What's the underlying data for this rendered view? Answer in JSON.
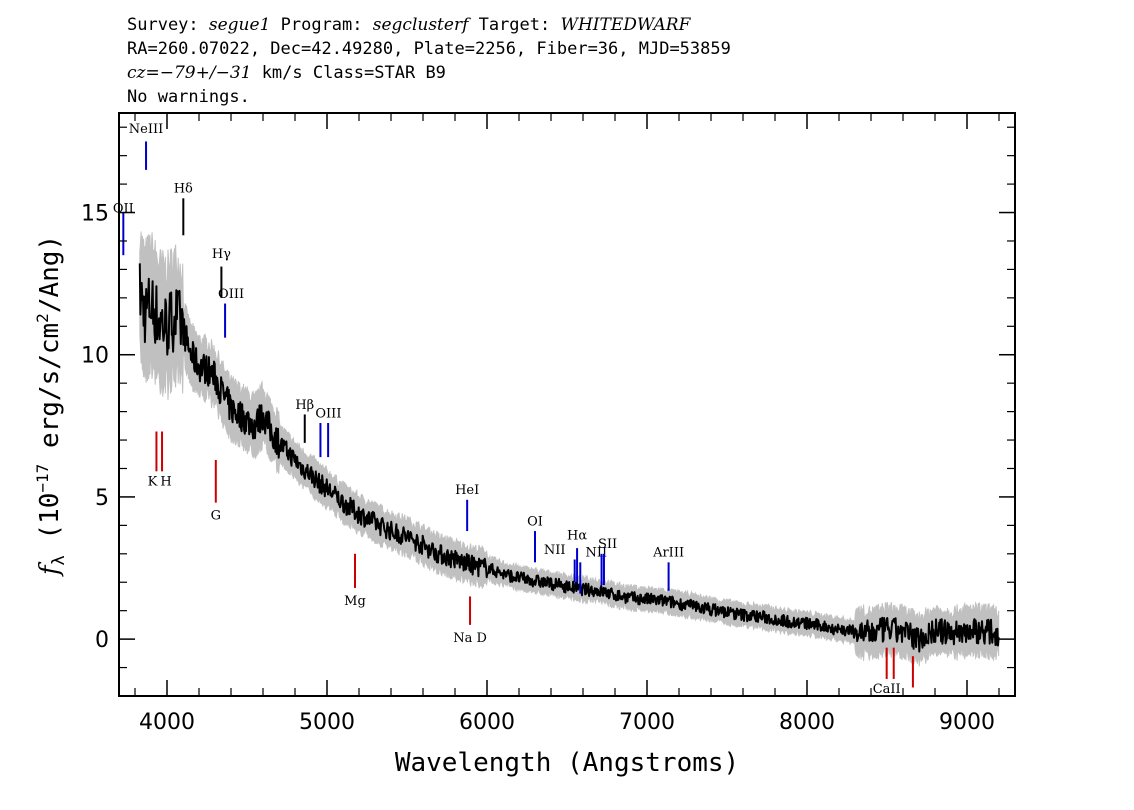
{
  "header": {
    "line1": {
      "survey_label": "Survey: ",
      "survey": "segue1",
      "program_label": " Program: ",
      "program": "segclusterf",
      "target_label": " Target: ",
      "target": "WHITEDWARF"
    },
    "line2": "RA=260.07022, Dec=42.49280, Plate=2256, Fiber=36, MJD=53859",
    "line3": {
      "cz": "cz=−79+/−31",
      "rest": " km/s Class=STAR B9"
    },
    "line4": "No warnings."
  },
  "chart_data": {
    "type": "line",
    "xlabel": "Wavelength (Angstroms)",
    "ylabel": "fλ (10⁻¹⁷ erg/s/cm²/Ang)",
    "xlim": [
      3700,
      9300
    ],
    "ylim": [
      -2,
      18.5
    ],
    "grid": false,
    "x_ticks": [
      4000,
      5000,
      6000,
      7000,
      8000,
      9000
    ],
    "y_ticks": [
      0,
      5,
      10,
      15
    ],
    "colors": {
      "flux": "#000000",
      "error": "#c0c0c0",
      "emission": "#0000cc",
      "absorption": "#cc0000"
    },
    "series": [
      {
        "name": "flux",
        "x": [
          3830,
          3860,
          3900,
          3950,
          4000,
          4050,
          4100,
          4150,
          4200,
          4250,
          4300,
          4350,
          4400,
          4450,
          4500,
          4550,
          4600,
          4650,
          4700,
          4750,
          4800,
          4850,
          4900,
          4950,
          5000,
          5100,
          5200,
          5300,
          5400,
          5500,
          5600,
          5700,
          5800,
          5900,
          6000,
          6100,
          6200,
          6300,
          6400,
          6500,
          6600,
          6700,
          6800,
          6900,
          7000,
          7100,
          7200,
          7300,
          7400,
          7500,
          7600,
          7700,
          7800,
          7900,
          8000,
          8100,
          8200,
          8300,
          8400,
          8500,
          8600,
          8700,
          8800,
          8900,
          9000,
          9100,
          9200
        ],
        "y": [
          12.2,
          11.5,
          11.8,
          11.2,
          11.0,
          11.4,
          10.9,
          10.0,
          9.6,
          9.5,
          9.2,
          8.6,
          8.1,
          7.9,
          7.7,
          7.5,
          7.9,
          7.3,
          6.9,
          6.6,
          6.3,
          6.0,
          5.8,
          5.5,
          5.3,
          4.8,
          4.4,
          4.1,
          3.8,
          3.6,
          3.3,
          3.0,
          2.8,
          2.6,
          2.5,
          2.3,
          2.15,
          2.05,
          1.95,
          1.85,
          1.75,
          1.7,
          1.55,
          1.45,
          1.4,
          1.35,
          1.25,
          1.15,
          1.05,
          0.95,
          0.85,
          0.8,
          0.7,
          0.6,
          0.55,
          0.45,
          0.35,
          0.25,
          0.2,
          0.35,
          0.25,
          0.0,
          0.3,
          0.2,
          0.3,
          0.3,
          0.2
        ]
      }
    ],
    "lines": [
      {
        "label": "OII",
        "wave": 3727,
        "y1": 13.5,
        "y2": 15.0,
        "color": "#0000cc",
        "label_y": 15.0,
        "side": "top",
        "dx": 0
      },
      {
        "label": "NeIII",
        "wave": 3869,
        "y1": 16.5,
        "y2": 17.5,
        "color": "#0000cc",
        "label_y": 17.8,
        "side": "top",
        "dx": 0
      },
      {
        "label": "Hδ",
        "wave": 4102,
        "y1": 14.2,
        "y2": 15.5,
        "color": "#000000",
        "label_y": 15.7,
        "side": "top",
        "dx": 0
      },
      {
        "label": "Hγ",
        "wave": 4340,
        "y1": 12.0,
        "y2": 13.1,
        "color": "#000000",
        "label_y": 13.4,
        "side": "top",
        "dx": 0
      },
      {
        "label": "OIII",
        "wave": 4363,
        "y1": 10.6,
        "y2": 11.8,
        "color": "#0000cc",
        "label_y": 12.0,
        "side": "top",
        "dx": 6
      },
      {
        "label": "Hβ",
        "wave": 4861,
        "y1": 6.9,
        "y2": 7.9,
        "color": "#000000",
        "label_y": 8.1,
        "side": "top",
        "dx": 0
      },
      {
        "label": "OIII",
        "wave": 4959,
        "y1": 6.4,
        "y2": 7.6,
        "color": "#0000cc",
        "label_y": 7.8,
        "side": "top",
        "dx": 8
      },
      {
        "label": "OIII",
        "wave": 5007,
        "y1": 6.4,
        "y2": 7.6,
        "color": "#0000cc",
        "label_y": null,
        "side": "top",
        "dx": 0
      },
      {
        "label": "HeI",
        "wave": 5876,
        "y1": 3.8,
        "y2": 4.9,
        "color": "#0000cc",
        "label_y": 5.1,
        "side": "top",
        "dx": 0
      },
      {
        "label": "OI",
        "wave": 6300,
        "y1": 2.7,
        "y2": 3.8,
        "color": "#0000cc",
        "label_y": 4.0,
        "side": "top",
        "dx": 0
      },
      {
        "label": "NII",
        "wave": 6548,
        "y1": 2.0,
        "y2": 2.8,
        "color": "#0000cc",
        "label_y": 3.0,
        "side": "top",
        "dx": -20
      },
      {
        "label": "Hα",
        "wave": 6563,
        "y1": 2.0,
        "y2": 3.2,
        "color": "#0000cc",
        "label_y": 3.5,
        "side": "top",
        "dx": 0
      },
      {
        "label": "NII",
        "wave": 6583,
        "y1": 1.6,
        "y2": 2.7,
        "color": "#0000cc",
        "label_y": 2.9,
        "side": "top",
        "dx": 16
      },
      {
        "label": "SII",
        "wave": 6716,
        "y1": 1.9,
        "y2": 3.0,
        "color": "#0000cc",
        "label_y": 3.2,
        "side": "top",
        "dx": 6
      },
      {
        "label": "SII",
        "wave": 6731,
        "y1": 1.9,
        "y2": 3.0,
        "color": "#0000cc",
        "label_y": null,
        "side": "top",
        "dx": 0
      },
      {
        "label": "ArIII",
        "wave": 7135,
        "y1": 1.7,
        "y2": 2.7,
        "color": "#0000cc",
        "label_y": 2.9,
        "side": "top",
        "dx": 0
      },
      {
        "label": "K",
        "wave": 3934,
        "y1": 5.9,
        "y2": 7.3,
        "color": "#cc0000",
        "label_y": 5.4,
        "side": "bottom",
        "dx": -4
      },
      {
        "label": "H",
        "wave": 3969,
        "y1": 5.9,
        "y2": 7.3,
        "color": "#cc0000",
        "label_y": 5.4,
        "side": "bottom",
        "dx": 4
      },
      {
        "label": "G",
        "wave": 4305,
        "y1": 4.8,
        "y2": 6.3,
        "color": "#cc0000",
        "label_y": 4.2,
        "side": "bottom",
        "dx": 0
      },
      {
        "label": "Mg",
        "wave": 5175,
        "y1": 1.8,
        "y2": 3.0,
        "color": "#cc0000",
        "label_y": 1.2,
        "side": "bottom",
        "dx": 0
      },
      {
        "label": "Na D",
        "wave": 5894,
        "y1": 0.5,
        "y2": 1.5,
        "color": "#cc0000",
        "label_y": -0.1,
        "side": "bottom",
        "dx": 0
      },
      {
        "label": "CaII",
        "wave": 8498,
        "y1": -1.4,
        "y2": -0.3,
        "color": "#cc0000",
        "label_y": -1.9,
        "side": "bottom",
        "dx": 0
      },
      {
        "label": "CaII",
        "wave": 8542,
        "y1": -1.4,
        "y2": -0.3,
        "color": "#cc0000",
        "label_y": null,
        "side": "bottom",
        "dx": 0
      },
      {
        "label": "CaII",
        "wave": 8662,
        "y1": -1.7,
        "y2": -0.6,
        "color": "#cc0000",
        "label_y": null,
        "side": "bottom",
        "dx": 0
      }
    ]
  }
}
